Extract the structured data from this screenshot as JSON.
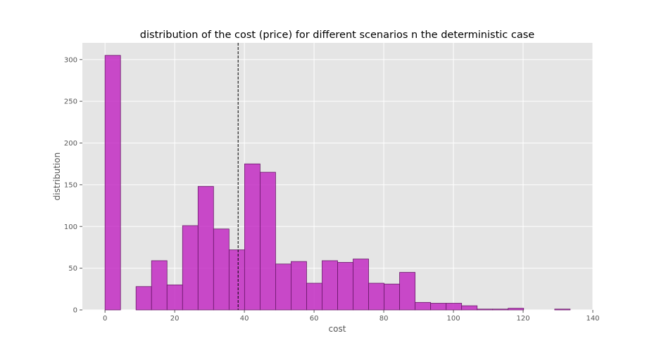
{
  "chart_data": {
    "type": "bar",
    "title": "distribution of the cost (price) for different scenarios n the deterministic case",
    "xlabel": "cost",
    "ylabel": "distribution",
    "xlim": [
      -6.5,
      140
    ],
    "ylim": [
      0,
      320
    ],
    "xticks": [
      0,
      20,
      40,
      60,
      80,
      100,
      120,
      140
    ],
    "yticks": [
      0,
      50,
      100,
      150,
      200,
      250,
      300
    ],
    "grid": true,
    "bin_width": 4.45,
    "bins": [
      {
        "x0": 0.0,
        "value": 305
      },
      {
        "x0": 4.45,
        "value": 0
      },
      {
        "x0": 8.9,
        "value": 28
      },
      {
        "x0": 13.35,
        "value": 59
      },
      {
        "x0": 17.8,
        "value": 30
      },
      {
        "x0": 22.25,
        "value": 101
      },
      {
        "x0": 26.7,
        "value": 148
      },
      {
        "x0": 31.15,
        "value": 97
      },
      {
        "x0": 35.6,
        "value": 72
      },
      {
        "x0": 40.05,
        "value": 175
      },
      {
        "x0": 44.5,
        "value": 165
      },
      {
        "x0": 48.95,
        "value": 55
      },
      {
        "x0": 53.4,
        "value": 58
      },
      {
        "x0": 57.85,
        "value": 32
      },
      {
        "x0": 62.3,
        "value": 59
      },
      {
        "x0": 66.75,
        "value": 57
      },
      {
        "x0": 71.2,
        "value": 61
      },
      {
        "x0": 75.65,
        "value": 32
      },
      {
        "x0": 80.1,
        "value": 31
      },
      {
        "x0": 84.55,
        "value": 45
      },
      {
        "x0": 89.0,
        "value": 9
      },
      {
        "x0": 93.45,
        "value": 8
      },
      {
        "x0": 97.9,
        "value": 8
      },
      {
        "x0": 102.35,
        "value": 5
      },
      {
        "x0": 106.8,
        "value": 1
      },
      {
        "x0": 111.25,
        "value": 1
      },
      {
        "x0": 115.7,
        "value": 2
      },
      {
        "x0": 120.15,
        "value": 0
      },
      {
        "x0": 124.6,
        "value": 0
      },
      {
        "x0": 129.05,
        "value": 1
      }
    ],
    "mean_line_x": 38.2,
    "colors": {
      "plot_background": "#e5e5e5",
      "grid": "#ffffff",
      "bar_fill": "#c020c0",
      "bar_opacity": 0.8,
      "bar_edge": "#6a1a6a",
      "mean_line": "#000000",
      "text": "#000000",
      "tick_text": "#555555"
    }
  }
}
